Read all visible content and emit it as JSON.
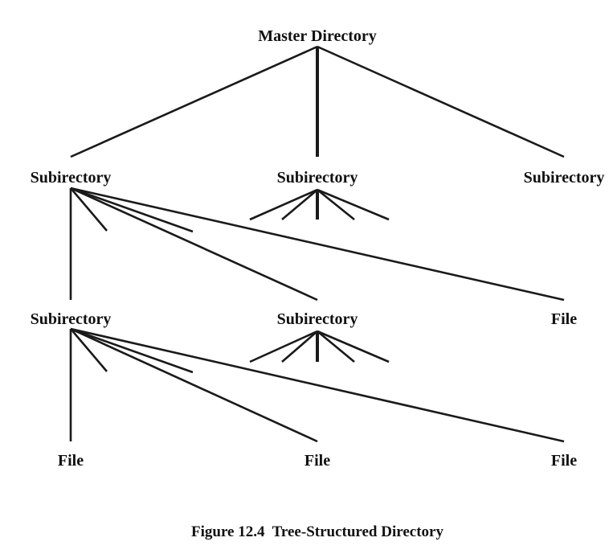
{
  "nodes": {
    "master": "Master Directory",
    "sub_left": "Subirectory",
    "sub_center": "Subirectory",
    "sub_right": "Subirectory",
    "sub_left_child": "Subirectory",
    "sub_left_mid": "Subirectory",
    "file_level2_right": "File",
    "file_bottom_left": "File",
    "file_bottom_center": "File",
    "file_bottom_right": "File"
  },
  "caption": "Figure 12.4  Tree-Structured Directory",
  "colors": {
    "ink": "#1a1a1a",
    "background": "#ffffff"
  }
}
